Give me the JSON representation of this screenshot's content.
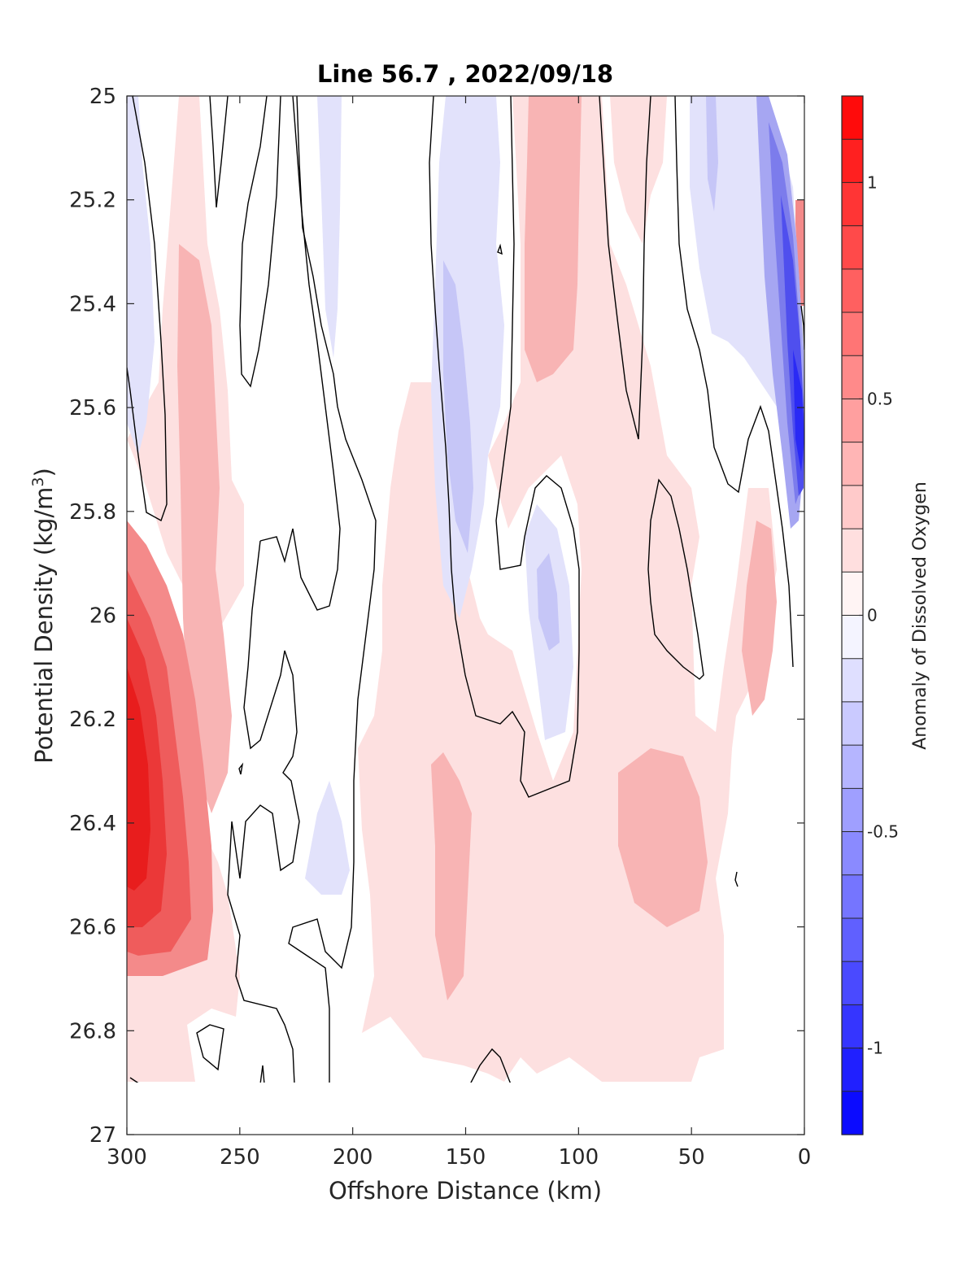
{
  "chart_data": {
    "type": "heatmap",
    "title": "Line 56.7 , 2022/09/18",
    "xlabel": "Offshore Distance (km)",
    "ylabel_main": "Potential Density (kg/m",
    "ylabel_sup": "3",
    "ylabel_end": ")",
    "xlim": [
      300,
      0
    ],
    "ylim": [
      25,
      27
    ],
    "x_ticks": [
      300,
      250,
      200,
      150,
      100,
      50,
      0
    ],
    "x_tick_labels": [
      "300",
      "250",
      "200",
      "150",
      "100",
      "50",
      "0"
    ],
    "y_ticks": [
      25,
      25.2,
      25.4,
      25.6,
      25.8,
      26,
      26.2,
      26.4,
      26.6,
      26.8,
      27
    ],
    "y_tick_labels": [
      "25",
      "25.2",
      "25.4",
      "25.6",
      "25.8",
      "26",
      "26.2",
      "26.4",
      "26.6",
      "26.8",
      "27"
    ],
    "colorbar": {
      "label": "Anomaly of Dissolved Oxygen",
      "range": [
        -1.2,
        1.2
      ],
      "levels": 24,
      "ticks": [
        1,
        0.5,
        0,
        -0.5,
        -1
      ],
      "tick_labels": [
        "1",
        "0.5",
        "0",
        "-0.5",
        "-1"
      ],
      "colormap": [
        "#0000ff",
        "#ffffff",
        "#ff0000"
      ]
    },
    "anomaly_features": [
      {
        "x": [
          300,
          280
        ],
        "y": [
          26.0,
          26.65
        ],
        "value": 0.95
      },
      {
        "x": [
          280,
          250
        ],
        "y": [
          25.3,
          26.4
        ],
        "value": 0.35
      },
      {
        "x": [
          125,
          95
        ],
        "y": [
          25.0,
          25.55
        ],
        "value": 0.45
      },
      {
        "x": [
          75,
          40
        ],
        "y": [
          26.3,
          26.6
        ],
        "value": 0.45
      },
      {
        "x": [
          165,
          135
        ],
        "y": [
          25.3,
          25.9
        ],
        "value": -0.3
      },
      {
        "x": [
          125,
          105
        ],
        "y": [
          25.85,
          26.05
        ],
        "value": -0.3
      },
      {
        "x": [
          20,
          0
        ],
        "y": [
          25.0,
          25.8
        ],
        "value": -0.9
      },
      {
        "x": [
          4,
          0
        ],
        "y": [
          25.2,
          25.45
        ],
        "value": 0.6
      }
    ]
  }
}
